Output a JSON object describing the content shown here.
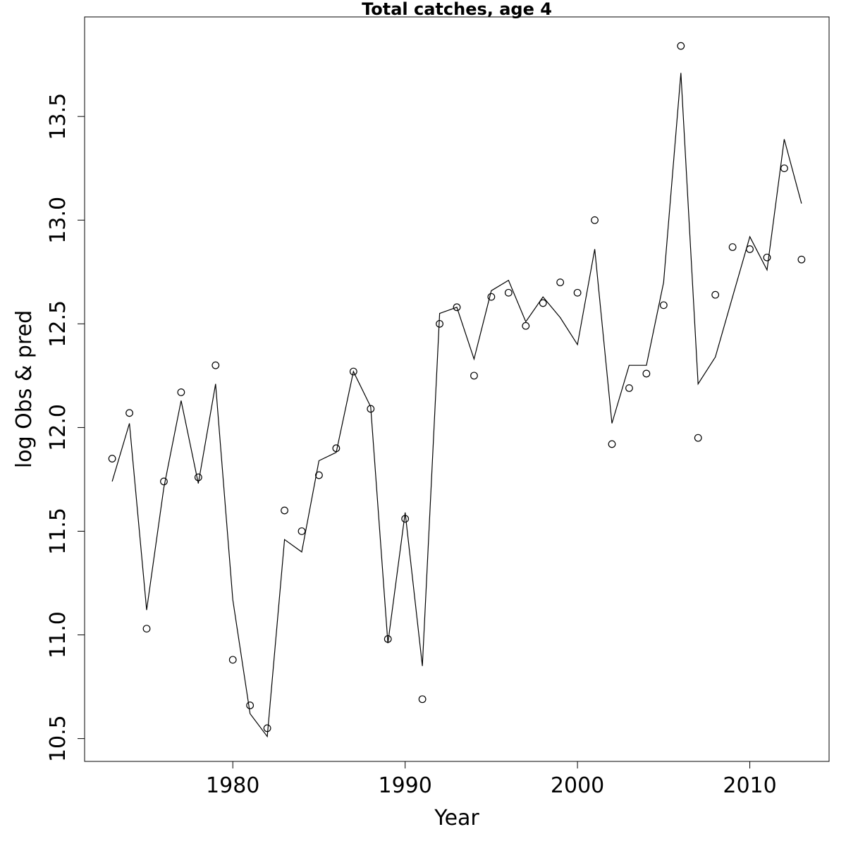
{
  "chart_data": {
    "type": "line",
    "title": "Total catches, age 4",
    "xlabel": "Year",
    "ylabel": "log Obs & pred",
    "xlim": [
      1971.4,
      2014.6
    ],
    "ylim": [
      10.39,
      13.98
    ],
    "x_ticks": [
      1980,
      1990,
      2000,
      2010
    ],
    "y_ticks": [
      10.5,
      11.0,
      11.5,
      12.0,
      12.5,
      13.0,
      13.5
    ],
    "x_tick_labels": [
      "1980",
      "1990",
      "2000",
      "2010"
    ],
    "y_tick_labels": [
      "10.5",
      "11.0",
      "11.5",
      "12.0",
      "12.5",
      "13.0",
      "13.5"
    ],
    "grid": false,
    "x": [
      1973,
      1974,
      1975,
      1976,
      1977,
      1978,
      1979,
      1980,
      1981,
      1982,
      1983,
      1984,
      1985,
      1986,
      1987,
      1988,
      1989,
      1990,
      1991,
      1992,
      1993,
      1994,
      1995,
      1996,
      1997,
      1998,
      1999,
      2000,
      2001,
      2002,
      2003,
      2004,
      2005,
      2006,
      2007,
      2008,
      2009,
      2010,
      2011,
      2012,
      2013
    ],
    "series": [
      {
        "style": "points",
        "values": [
          11.85,
          12.07,
          11.03,
          11.74,
          12.17,
          11.76,
          12.3,
          10.88,
          10.66,
          10.55,
          11.6,
          11.5,
          11.77,
          11.9,
          12.27,
          12.09,
          10.98,
          11.56,
          10.69,
          12.5,
          12.58,
          12.25,
          12.63,
          12.65,
          12.49,
          12.6,
          12.7,
          12.65,
          13.0,
          11.92,
          12.19,
          12.26,
          12.59,
          13.84,
          11.95,
          12.64,
          12.87,
          12.86,
          12.82,
          13.25,
          12.81
        ]
      },
      {
        "style": "line",
        "values": [
          11.74,
          12.02,
          11.12,
          11.71,
          12.13,
          11.73,
          12.21,
          11.17,
          10.62,
          10.51,
          11.46,
          11.4,
          11.84,
          11.88,
          12.27,
          12.1,
          10.96,
          11.59,
          10.85,
          12.55,
          12.58,
          12.33,
          12.66,
          12.71,
          12.51,
          12.63,
          12.53,
          12.4,
          12.86,
          12.02,
          12.3,
          12.3,
          12.7,
          13.71,
          12.21,
          12.34,
          12.63,
          12.92,
          12.76,
          13.39,
          13.08
        ]
      }
    ]
  }
}
